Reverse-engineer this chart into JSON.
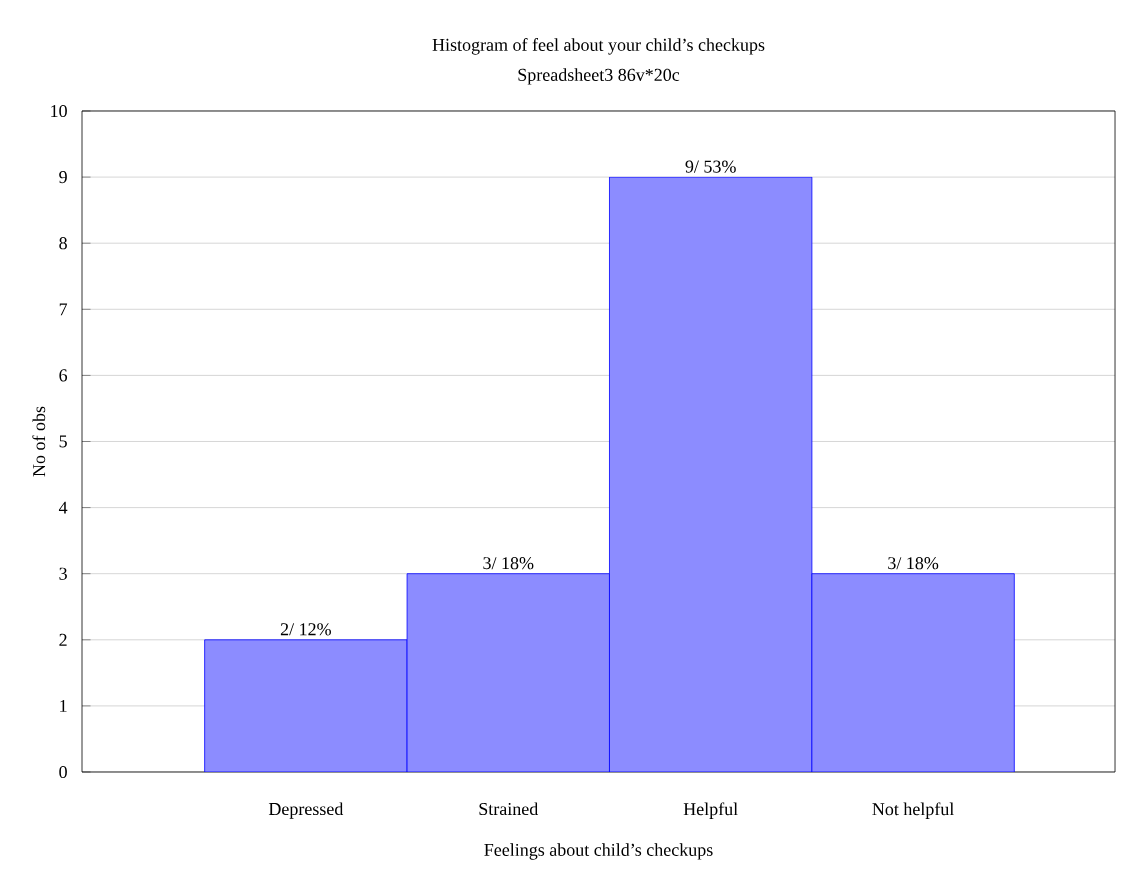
{
  "chart_data": {
    "type": "bar",
    "title": "Histogram of feel about your child’s checkups",
    "subtitle": "Spreadsheet3 86v*20c",
    "xlabel": "Feelings about child’s checkups",
    "ylabel": "No of obs",
    "categories": [
      "Depressed",
      "Strained",
      "Helpful",
      "Not helpful"
    ],
    "values": [
      2,
      3,
      9,
      3
    ],
    "color": "#0000ff",
    "value_labels": [
      "2/ 12%",
      "3/ 18%",
      "9/ 53%",
      "3/ 18%"
    ],
    "ylim": [
      0,
      10
    ],
    "yticks": [
      0,
      1,
      2,
      3,
      4,
      5,
      6,
      7,
      8,
      9,
      10
    ],
    "grid": "y"
  }
}
